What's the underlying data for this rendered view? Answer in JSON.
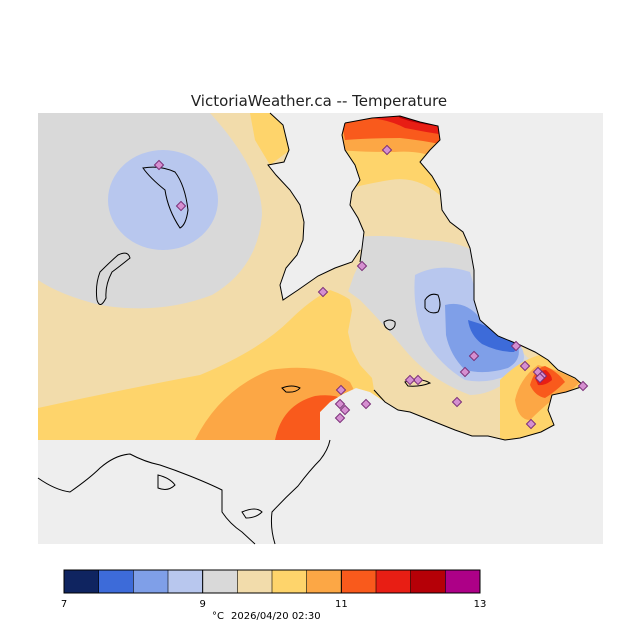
{
  "title": "VictoriaWeather.ca -- Temperature",
  "legend": {
    "unit": "°C",
    "timestamp": "2026/04/20 02:30",
    "tick_labels": [
      "7",
      "9",
      "11",
      "13"
    ],
    "bins": [
      {
        "from": 7.0,
        "to": 7.5,
        "color": "#0f2460"
      },
      {
        "from": 7.5,
        "to": 8.0,
        "color": "#3d6bd9"
      },
      {
        "from": 8.0,
        "to": 8.5,
        "color": "#7f9fe8"
      },
      {
        "from": 8.5,
        "to": 9.0,
        "color": "#b8c7ee"
      },
      {
        "from": 9.0,
        "to": 9.5,
        "color": "#d9d9d9"
      },
      {
        "from": 9.5,
        "to": 10.0,
        "color": "#f2dcab"
      },
      {
        "from": 10.0,
        "to": 10.5,
        "color": "#fed46b"
      },
      {
        "from": 10.5,
        "to": 11.0,
        "color": "#fca745"
      },
      {
        "from": 11.0,
        "to": 11.5,
        "color": "#f95a1c"
      },
      {
        "from": 11.5,
        "to": 12.0,
        "color": "#e81e14"
      },
      {
        "from": 12.0,
        "to": 12.5,
        "color": "#b50007"
      },
      {
        "from": 12.5,
        "to": 13.0,
        "color": "#ad0087"
      }
    ]
  },
  "colors": {
    "water": "#eeeeee",
    "coastline": "#000000",
    "station_fill": "#d58fd0",
    "station_stroke": "#7a2e77"
  },
  "stations_count": 22
}
